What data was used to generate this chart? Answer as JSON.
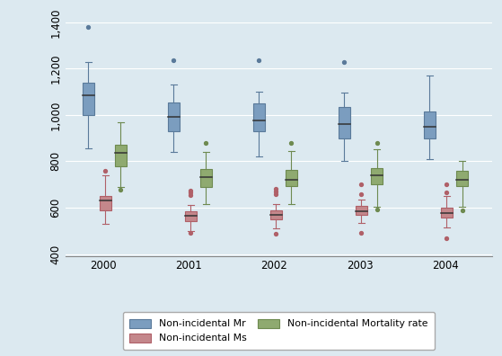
{
  "years": [
    2000,
    2001,
    2002,
    2003,
    2004
  ],
  "background_color": "#dce9f0",
  "plot_bg_color": "#dce9f0",
  "series": {
    "Mr": {
      "color": "#7b9dbf",
      "edge_color": "#5a7a9a",
      "label": "Non-incidental Mr",
      "boxes": [
        {
          "whislo": 855,
          "q1": 1000,
          "med": 1085,
          "q3": 1140,
          "whishi": 1230,
          "fliers_high": [
            1380
          ],
          "fliers_low": []
        },
        {
          "whislo": 840,
          "q1": 930,
          "med": 990,
          "q3": 1055,
          "whishi": 1130,
          "fliers_high": [
            1235
          ],
          "fliers_low": []
        },
        {
          "whislo": 820,
          "q1": 930,
          "med": 975,
          "q3": 1050,
          "whishi": 1100,
          "fliers_high": [
            1235
          ],
          "fliers_low": []
        },
        {
          "whislo": 800,
          "q1": 900,
          "med": 960,
          "q3": 1035,
          "whishi": 1095,
          "fliers_high": [
            1230
          ],
          "fliers_low": []
        },
        {
          "whislo": 810,
          "q1": 900,
          "med": 950,
          "q3": 1015,
          "whishi": 1170,
          "fliers_high": [],
          "fliers_low": []
        }
      ]
    },
    "Ms": {
      "color": "#c4878b",
      "edge_color": "#b06068",
      "label": "Non-incidental Ms",
      "boxes": [
        {
          "whislo": 530,
          "q1": 590,
          "med": 630,
          "q3": 650,
          "whishi": 740,
          "fliers_high": [
            760
          ],
          "fliers_low": []
        },
        {
          "whislo": 500,
          "q1": 540,
          "med": 565,
          "q3": 585,
          "whishi": 610,
          "fliers_high": [
            655,
            665,
            675
          ],
          "fliers_low": [
            490
          ]
        },
        {
          "whislo": 510,
          "q1": 548,
          "med": 568,
          "q3": 588,
          "whishi": 615,
          "fliers_high": [
            660,
            670,
            680
          ],
          "fliers_low": [
            488
          ]
        },
        {
          "whislo": 535,
          "q1": 568,
          "med": 585,
          "q3": 608,
          "whishi": 635,
          "fliers_high": [
            660,
            700
          ],
          "fliers_low": [
            490
          ]
        },
        {
          "whislo": 515,
          "q1": 558,
          "med": 578,
          "q3": 600,
          "whishi": 650,
          "fliers_high": [
            665,
            700
          ],
          "fliers_low": [
            468
          ]
        }
      ]
    },
    "Mort": {
      "color": "#8faa70",
      "edge_color": "#6e8a50",
      "label": "Non-incidental Mortality rate",
      "boxes": [
        {
          "whislo": 690,
          "q1": 780,
          "med": 835,
          "q3": 870,
          "whishi": 970,
          "fliers_high": [],
          "fliers_low": [
            678
          ]
        },
        {
          "whislo": 615,
          "q1": 690,
          "med": 730,
          "q3": 768,
          "whishi": 840,
          "fliers_high": [
            878
          ],
          "fliers_low": []
        },
        {
          "whislo": 615,
          "q1": 692,
          "med": 722,
          "q3": 762,
          "whishi": 845,
          "fliers_high": [
            878
          ],
          "fliers_low": []
        },
        {
          "whislo": 605,
          "q1": 700,
          "med": 738,
          "q3": 770,
          "whishi": 852,
          "fliers_high": [
            878
          ],
          "fliers_low": [
            592
          ]
        },
        {
          "whislo": 605,
          "q1": 692,
          "med": 722,
          "q3": 758,
          "whishi": 800,
          "fliers_high": [],
          "fliers_low": [
            588
          ]
        }
      ]
    }
  },
  "ylim": [
    390,
    1450
  ],
  "yticks": [
    400,
    600,
    800,
    1000,
    1200,
    1400
  ],
  "ytick_labels": [
    "400",
    "600",
    "800",
    "1,000",
    "1,200",
    "1,400"
  ],
  "box_width": 0.13,
  "offsets": {
    "Mr": -0.18,
    "Ms": 0.02,
    "Mort": 0.2
  },
  "series_order": [
    "Mr",
    "Ms",
    "Mort"
  ]
}
